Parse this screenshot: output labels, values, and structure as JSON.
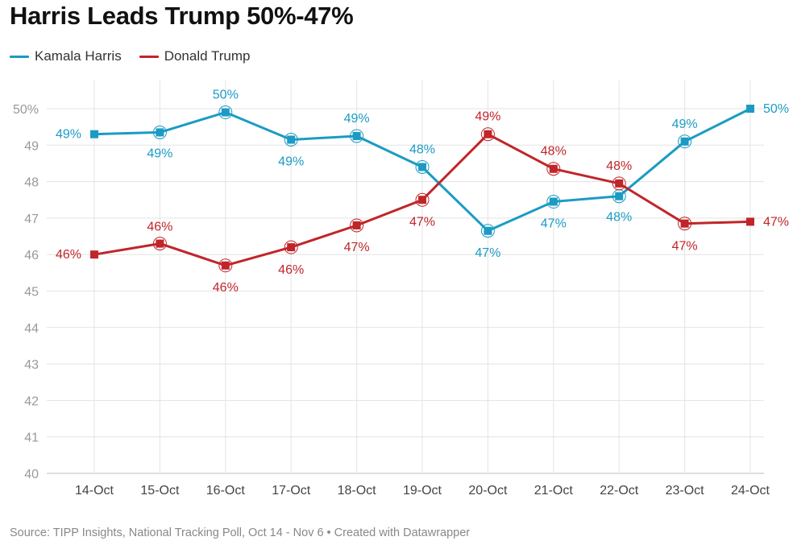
{
  "title": "Harris Leads Trump 50%-47%",
  "source": "Source: TIPP Insights, National Tracking Poll, Oct 14 - Nov 6 • Created with Datawrapper",
  "colors": {
    "harris": "#1b9bc4",
    "trump": "#c0252a",
    "grid": "#e3e3e3"
  },
  "chart_data": {
    "type": "line",
    "title": "Harris Leads Trump 50%-47%",
    "xlabel": "",
    "ylabel": "",
    "categories": [
      "14-Oct",
      "15-Oct",
      "16-Oct",
      "17-Oct",
      "18-Oct",
      "19-Oct",
      "20-Oct",
      "21-Oct",
      "22-Oct",
      "23-Oct",
      "24-Oct"
    ],
    "ylim": [
      40,
      50
    ],
    "yticks": [
      "50%",
      "49",
      "48",
      "47",
      "46",
      "45",
      "44",
      "43",
      "42",
      "41",
      "40"
    ],
    "grid": true,
    "legend_position": "top-left",
    "series": [
      {
        "name": "Kamala Harris",
        "color": "#1b9bc4",
        "values": [
          49.3,
          49.35,
          49.9,
          49.15,
          49.25,
          48.4,
          46.65,
          47.45,
          47.6,
          49.1,
          50.0
        ],
        "labels": [
          "49%",
          "49%",
          "50%",
          "49%",
          "49%",
          "48%",
          "47%",
          "47%",
          "48%",
          "49%",
          "50%"
        ]
      },
      {
        "name": "Donald Trump",
        "color": "#c0252a",
        "values": [
          46.0,
          46.3,
          45.7,
          46.2,
          46.8,
          47.5,
          49.3,
          48.35,
          47.95,
          46.85,
          46.9
        ],
        "labels": [
          "46%",
          "46%",
          "46%",
          "46%",
          "47%",
          "47%",
          "49%",
          "48%",
          "48%",
          "47%",
          "47%"
        ]
      }
    ]
  }
}
